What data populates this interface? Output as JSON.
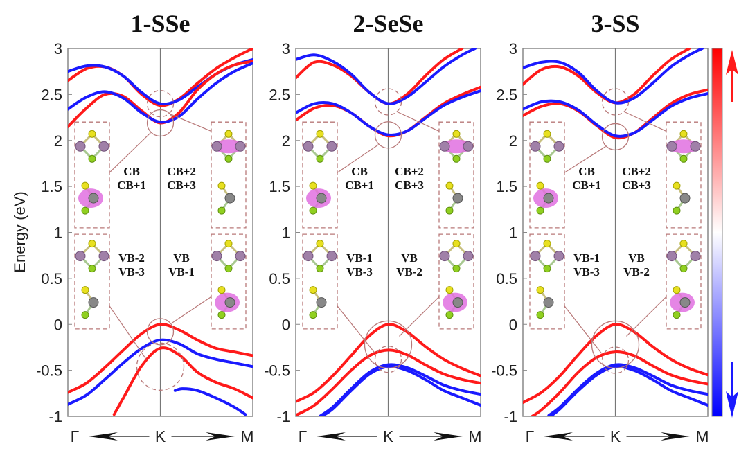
{
  "chart_data": {
    "type": "line",
    "description": "Spin-resolved electronic band structures along Γ-K-M for three Janus structures, color-coded by spin (red = spin up, blue = spin down), with orbital charge-density insets",
    "ylabel": "Energy (eV)",
    "ylim": [
      -1,
      3
    ],
    "yticks": [
      "3",
      "2.5",
      "2",
      "1.5",
      "1",
      "0.5",
      "0",
      "-0.5",
      "-1"
    ],
    "ytick_values": [
      3,
      2.5,
      2,
      1.5,
      1,
      0.5,
      0,
      -0.5,
      -1
    ],
    "xticks": [
      "Γ",
      "K",
      "M"
    ],
    "xlim_fraction": [
      0,
      1
    ],
    "colorbar": {
      "top_color": "#ff0000",
      "mid_color": "#ffffff",
      "bottom_color": "#0000ff",
      "top_label": "spin-up-arrow",
      "bottom_label": "spin-down-arrow"
    },
    "colors": {
      "spin_up": "#ff1a1a",
      "spin_down": "#1a1aff",
      "annotation": "#b87878"
    },
    "panels": [
      {
        "title": "1-SSe",
        "series": [
          {
            "name": "CB+2 up",
            "spin": "up",
            "x": [
              0,
              0.1,
              0.2,
              0.3,
              0.4,
              0.5,
              0.6,
              0.7,
              0.8,
              0.9,
              1.0
            ],
            "y": [
              2.65,
              2.78,
              2.8,
              2.7,
              2.5,
              2.38,
              2.45,
              2.62,
              2.78,
              2.9,
              3.0
            ]
          },
          {
            "name": "CB+3 down",
            "spin": "down",
            "x": [
              0,
              0.1,
              0.2,
              0.3,
              0.4,
              0.5,
              0.6,
              0.7,
              0.8,
              0.9,
              1.0
            ],
            "y": [
              2.75,
              2.81,
              2.8,
              2.7,
              2.52,
              2.4,
              2.44,
              2.58,
              2.72,
              2.82,
              2.88
            ]
          },
          {
            "name": "CB up",
            "spin": "up",
            "x": [
              0,
              0.1,
              0.2,
              0.3,
              0.4,
              0.5,
              0.6,
              0.7,
              0.8,
              0.9,
              1.0
            ],
            "y": [
              2.15,
              2.35,
              2.5,
              2.48,
              2.32,
              2.19,
              2.3,
              2.55,
              2.72,
              2.82,
              2.86
            ]
          },
          {
            "name": "CB+1 down",
            "spin": "down",
            "x": [
              0,
              0.1,
              0.2,
              0.3,
              0.4,
              0.5,
              0.6,
              0.7,
              0.8,
              0.9,
              1.0
            ],
            "y": [
              2.34,
              2.47,
              2.53,
              2.46,
              2.3,
              2.2,
              2.26,
              2.45,
              2.62,
              2.75,
              2.84
            ]
          },
          {
            "name": "VB up",
            "spin": "up",
            "x": [
              0,
              0.1,
              0.2,
              0.3,
              0.4,
              0.5,
              0.6,
              0.7,
              0.8,
              0.9,
              1.0
            ],
            "y": [
              -0.74,
              -0.64,
              -0.47,
              -0.28,
              -0.1,
              0.0,
              -0.06,
              -0.17,
              -0.26,
              -0.3,
              -0.34
            ]
          },
          {
            "name": "VB-1 down",
            "spin": "down",
            "x": [
              0,
              0.1,
              0.2,
              0.3,
              0.4,
              0.5,
              0.6,
              0.7,
              0.8,
              0.9,
              1.0
            ],
            "y": [
              -0.87,
              -0.77,
              -0.6,
              -0.42,
              -0.26,
              -0.17,
              -0.21,
              -0.32,
              -0.38,
              -0.42,
              -0.46
            ]
          },
          {
            "name": "VB-2 up",
            "spin": "up",
            "x": [
              0.25,
              0.3,
              0.4,
              0.5,
              0.6,
              0.7,
              0.8,
              0.9,
              1.0
            ],
            "y": [
              -0.98,
              -0.8,
              -0.45,
              -0.26,
              -0.33,
              -0.52,
              -0.63,
              -0.7,
              -0.8
            ]
          },
          {
            "name": "VB-3 down",
            "spin": "down",
            "x": [
              0.58,
              0.62,
              0.7,
              0.8,
              0.9,
              0.96
            ],
            "y": [
              -0.72,
              -0.7,
              -0.72,
              -0.8,
              -0.9,
              -0.98
            ]
          }
        ],
        "insets": {
          "cb_left": "CB\nCB+1",
          "cb_right": "CB+2\nCB+3",
          "vb_left": "VB-2\nVB-3",
          "vb_right": "VB\nVB-1"
        },
        "annotation_circles": [
          {
            "name": "cb-high",
            "k": 0.5,
            "E": 2.4,
            "style": "dashed"
          },
          {
            "name": "cb-low",
            "k": 0.5,
            "E": 2.19,
            "style": "solid"
          },
          {
            "name": "vb-top",
            "k": 0.5,
            "E": -0.08,
            "style": "solid"
          },
          {
            "name": "vb-low",
            "k": 0.5,
            "E": -0.46,
            "style": "dashed"
          }
        ]
      },
      {
        "title": "2-SeSe",
        "series": [
          {
            "name": "CB+2 up",
            "spin": "up",
            "x": [
              0,
              0.1,
              0.2,
              0.3,
              0.4,
              0.5,
              0.6,
              0.7,
              0.8,
              0.9
            ],
            "y": [
              2.68,
              2.85,
              2.82,
              2.7,
              2.52,
              2.4,
              2.5,
              2.7,
              2.88,
              3.0
            ]
          },
          {
            "name": "CB+3 down",
            "spin": "down",
            "x": [
              0,
              0.1,
              0.2,
              0.3,
              0.4,
              0.5,
              0.6,
              0.7,
              0.8,
              0.9,
              0.97
            ],
            "y": [
              2.88,
              2.93,
              2.86,
              2.72,
              2.52,
              2.4,
              2.47,
              2.63,
              2.8,
              2.93,
              3.0
            ]
          },
          {
            "name": "CB up",
            "spin": "up",
            "x": [
              0,
              0.1,
              0.2,
              0.3,
              0.4,
              0.5,
              0.6,
              0.7,
              0.8,
              0.9,
              1.0
            ],
            "y": [
              2.22,
              2.35,
              2.38,
              2.3,
              2.15,
              2.05,
              2.1,
              2.25,
              2.4,
              2.5,
              2.58
            ]
          },
          {
            "name": "CB+1 down",
            "spin": "down",
            "x": [
              0,
              0.1,
              0.2,
              0.3,
              0.4,
              0.5,
              0.6,
              0.7,
              0.8,
              0.9,
              1.0
            ],
            "y": [
              2.3,
              2.4,
              2.4,
              2.3,
              2.15,
              2.06,
              2.1,
              2.24,
              2.38,
              2.47,
              2.54
            ]
          },
          {
            "name": "VB up",
            "spin": "up",
            "x": [
              0,
              0.1,
              0.2,
              0.3,
              0.4,
              0.5,
              0.6,
              0.7,
              0.8,
              0.9,
              1.0
            ],
            "y": [
              -0.84,
              -0.74,
              -0.56,
              -0.34,
              -0.12,
              0.0,
              -0.08,
              -0.24,
              -0.38,
              -0.48,
              -0.56
            ]
          },
          {
            "name": "VB-1 up",
            "spin": "up",
            "x": [
              0,
              0.1,
              0.2,
              0.3,
              0.4,
              0.5,
              0.6,
              0.7,
              0.8,
              0.9,
              1.0
            ],
            "y": [
              -0.99,
              -0.88,
              -0.7,
              -0.5,
              -0.34,
              -0.28,
              -0.33,
              -0.44,
              -0.54,
              -0.6,
              -0.64
            ]
          },
          {
            "name": "VB-2 down",
            "spin": "down",
            "x": [
              0.13,
              0.2,
              0.3,
              0.4,
              0.5,
              0.6,
              0.7,
              0.8,
              0.9,
              1.0
            ],
            "y": [
              -1.0,
              -0.9,
              -0.7,
              -0.52,
              -0.44,
              -0.47,
              -0.56,
              -0.66,
              -0.72,
              -0.76
            ]
          },
          {
            "name": "VB-3 down",
            "spin": "down",
            "x": [
              0.14,
              0.2,
              0.3,
              0.4,
              0.5,
              0.6,
              0.7,
              0.8,
              0.9,
              1.0
            ],
            "y": [
              -1.0,
              -0.92,
              -0.72,
              -0.54,
              -0.46,
              -0.5,
              -0.6,
              -0.72,
              -0.8,
              -0.88
            ]
          }
        ],
        "insets": {
          "cb_left": "CB\nCB+1",
          "cb_right": "CB+2\nCB+3",
          "vb_left": "VB-1\nVB-3",
          "vb_right": "VB\nVB-2"
        },
        "annotation_circles": [
          {
            "name": "cb-high",
            "k": 0.5,
            "E": 2.42,
            "style": "dashed"
          },
          {
            "name": "cb-low",
            "k": 0.5,
            "E": 2.06,
            "style": "solid"
          },
          {
            "name": "vb-top",
            "k": 0.5,
            "E": -0.22,
            "style": "solid"
          },
          {
            "name": "vb-low",
            "k": 0.5,
            "E": -0.38,
            "style": "dashed"
          }
        ]
      },
      {
        "title": "3-SS",
        "series": [
          {
            "name": "CB+2 up",
            "spin": "up",
            "x": [
              0,
              0.1,
              0.2,
              0.3,
              0.4,
              0.5,
              0.6,
              0.7,
              0.8,
              0.9
            ],
            "y": [
              2.61,
              2.77,
              2.8,
              2.7,
              2.52,
              2.41,
              2.5,
              2.7,
              2.88,
              3.0
            ]
          },
          {
            "name": "CB+3 down",
            "spin": "down",
            "x": [
              0,
              0.1,
              0.2,
              0.3,
              0.4,
              0.5,
              0.6,
              0.7,
              0.8,
              0.9,
              0.97
            ],
            "y": [
              2.79,
              2.85,
              2.85,
              2.74,
              2.54,
              2.41,
              2.46,
              2.62,
              2.8,
              2.93,
              3.0
            ]
          },
          {
            "name": "CB up",
            "spin": "up",
            "x": [
              0,
              0.1,
              0.2,
              0.3,
              0.4,
              0.5,
              0.6,
              0.7,
              0.8,
              0.9,
              1.0
            ],
            "y": [
              2.27,
              2.37,
              2.4,
              2.32,
              2.16,
              2.03,
              2.08,
              2.24,
              2.4,
              2.5,
              2.55
            ]
          },
          {
            "name": "CB+1 down",
            "spin": "down",
            "x": [
              0,
              0.1,
              0.2,
              0.3,
              0.4,
              0.5,
              0.6,
              0.7,
              0.8,
              0.9,
              1.0
            ],
            "y": [
              2.34,
              2.42,
              2.42,
              2.33,
              2.17,
              2.05,
              2.08,
              2.22,
              2.37,
              2.46,
              2.51
            ]
          },
          {
            "name": "VB up",
            "spin": "up",
            "x": [
              0,
              0.1,
              0.2,
              0.3,
              0.4,
              0.5,
              0.6,
              0.7,
              0.8,
              0.9,
              1.0
            ],
            "y": [
              -0.85,
              -0.74,
              -0.56,
              -0.33,
              -0.12,
              0.0,
              -0.08,
              -0.24,
              -0.38,
              -0.48,
              -0.55
            ]
          },
          {
            "name": "VB-1 up",
            "spin": "up",
            "x": [
              0.05,
              0.1,
              0.2,
              0.3,
              0.4,
              0.5,
              0.6,
              0.7,
              0.8,
              0.9,
              1.0
            ],
            "y": [
              -1.0,
              -0.93,
              -0.74,
              -0.52,
              -0.36,
              -0.3,
              -0.34,
              -0.45,
              -0.55,
              -0.61,
              -0.65
            ]
          },
          {
            "name": "VB-2 down",
            "spin": "down",
            "x": [
              0.14,
              0.2,
              0.3,
              0.4,
              0.5,
              0.6,
              0.7,
              0.8,
              0.9,
              1.0
            ],
            "y": [
              -0.99,
              -0.9,
              -0.7,
              -0.53,
              -0.44,
              -0.47,
              -0.56,
              -0.66,
              -0.72,
              -0.76
            ]
          },
          {
            "name": "VB-3 down",
            "spin": "down",
            "x": [
              0.15,
              0.2,
              0.3,
              0.4,
              0.5,
              0.6,
              0.7,
              0.8,
              0.9,
              1.0
            ],
            "y": [
              -1.0,
              -0.92,
              -0.72,
              -0.55,
              -0.46,
              -0.5,
              -0.6,
              -0.72,
              -0.8,
              -0.88
            ]
          }
        ],
        "insets": {
          "cb_left": "CB\nCB+1",
          "cb_right": "CB+2\nCB+3",
          "vb_left": "VB-1\nVB-3",
          "vb_right": "VB\nVB-2"
        },
        "annotation_circles": [
          {
            "name": "cb-high",
            "k": 0.5,
            "E": 2.42,
            "style": "dashed"
          },
          {
            "name": "cb-low",
            "k": 0.5,
            "E": 2.04,
            "style": "solid"
          },
          {
            "name": "vb-top",
            "k": 0.5,
            "E": -0.22,
            "style": "solid"
          },
          {
            "name": "vb-low",
            "k": 0.5,
            "E": -0.39,
            "style": "dashed"
          }
        ]
      }
    ]
  }
}
